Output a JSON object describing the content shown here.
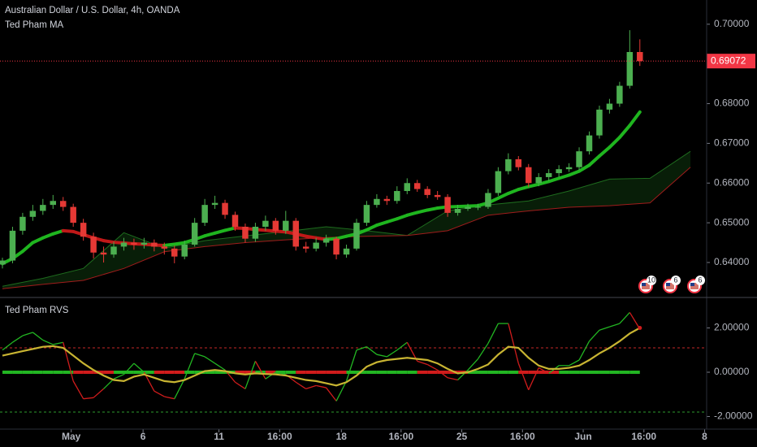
{
  "chart_data": [
    {
      "type": "candlestick",
      "title": "Australian Dollar / U.S. Dollar, 4h, OANDA",
      "subtitle": "Ted Pham MA",
      "ohlc": [
        [
          0.6395,
          0.6412,
          0.6385,
          0.6405
        ],
        [
          0.6405,
          0.649,
          0.6398,
          0.648
        ],
        [
          0.648,
          0.6525,
          0.647,
          0.6515
        ],
        [
          0.6515,
          0.6545,
          0.6505,
          0.653
        ],
        [
          0.653,
          0.656,
          0.652,
          0.6545
        ],
        [
          0.6545,
          0.657,
          0.6535,
          0.6555
        ],
        [
          0.6555,
          0.6565,
          0.653,
          0.654
        ],
        [
          0.654,
          0.6548,
          0.649,
          0.65
        ],
        [
          0.65,
          0.651,
          0.6455,
          0.6465
        ],
        [
          0.6465,
          0.6475,
          0.641,
          0.6425
        ],
        [
          0.6425,
          0.644,
          0.64,
          0.642
        ],
        [
          0.642,
          0.6452,
          0.6412,
          0.644
        ],
        [
          0.644,
          0.6462,
          0.643,
          0.645
        ],
        [
          0.645,
          0.646,
          0.6432,
          0.6445
        ],
        [
          0.6445,
          0.6462,
          0.6435,
          0.645
        ],
        [
          0.645,
          0.6458,
          0.6428,
          0.644
        ],
        [
          0.644,
          0.645,
          0.642,
          0.6435
        ],
        [
          0.6435,
          0.6442,
          0.6398,
          0.6415
        ],
        [
          0.6415,
          0.6455,
          0.6408,
          0.6445
        ],
        [
          0.6445,
          0.6512,
          0.644,
          0.65
        ],
        [
          0.65,
          0.656,
          0.6492,
          0.6545
        ],
        [
          0.6545,
          0.6568,
          0.6535,
          0.655
        ],
        [
          0.655,
          0.6558,
          0.651,
          0.652
        ],
        [
          0.652,
          0.6528,
          0.648,
          0.649
        ],
        [
          0.649,
          0.6498,
          0.645,
          0.646
        ],
        [
          0.646,
          0.65,
          0.6452,
          0.649
        ],
        [
          0.649,
          0.6518,
          0.648,
          0.6505
        ],
        [
          0.6505,
          0.6512,
          0.647,
          0.648
        ],
        [
          0.648,
          0.653,
          0.6472,
          0.6505
        ],
        [
          0.6505,
          0.6512,
          0.643,
          0.644
        ],
        [
          0.644,
          0.6452,
          0.6425,
          0.6435
        ],
        [
          0.6435,
          0.6462,
          0.6428,
          0.645
        ],
        [
          0.645,
          0.647,
          0.644,
          0.646
        ],
        [
          0.646,
          0.6465,
          0.6408,
          0.642
        ],
        [
          0.642,
          0.6445,
          0.6412,
          0.6435
        ],
        [
          0.6435,
          0.651,
          0.643,
          0.65
        ],
        [
          0.65,
          0.6555,
          0.6492,
          0.6545
        ],
        [
          0.6545,
          0.6572,
          0.6538,
          0.656
        ],
        [
          0.656,
          0.6568,
          0.6545,
          0.6555
        ],
        [
          0.6555,
          0.6592,
          0.6548,
          0.658
        ],
        [
          0.658,
          0.6612,
          0.6572,
          0.66
        ],
        [
          0.66,
          0.6608,
          0.6578,
          0.6585
        ],
        [
          0.6585,
          0.6592,
          0.6562,
          0.657
        ],
        [
          0.657,
          0.658,
          0.6558,
          0.6565
        ],
        [
          0.6565,
          0.6572,
          0.6515,
          0.6525
        ],
        [
          0.6525,
          0.6545,
          0.6518,
          0.6535
        ],
        [
          0.6535,
          0.6548,
          0.653,
          0.654
        ],
        [
          0.654,
          0.6548,
          0.6532,
          0.654
        ],
        [
          0.654,
          0.6585,
          0.6535,
          0.6575
        ],
        [
          0.6575,
          0.664,
          0.6568,
          0.663
        ],
        [
          0.663,
          0.6675,
          0.6622,
          0.666
        ],
        [
          0.666,
          0.6668,
          0.6632,
          0.664
        ],
        [
          0.664,
          0.6648,
          0.659,
          0.66
        ],
        [
          0.66,
          0.6625,
          0.6592,
          0.6615
        ],
        [
          0.6615,
          0.6635,
          0.6605,
          0.6625
        ],
        [
          0.6625,
          0.6645,
          0.6615,
          0.6635
        ],
        [
          0.6635,
          0.665,
          0.6628,
          0.664
        ],
        [
          0.664,
          0.669,
          0.6632,
          0.668
        ],
        [
          0.668,
          0.673,
          0.6672,
          0.672
        ],
        [
          0.672,
          0.6795,
          0.6712,
          0.6785
        ],
        [
          0.6785,
          0.6812,
          0.6775,
          0.68
        ],
        [
          0.68,
          0.6855,
          0.6792,
          0.6845
        ],
        [
          0.6845,
          0.6985,
          0.6838,
          0.693
        ],
        [
          0.693,
          0.6962,
          0.6895,
          0.6907
        ]
      ],
      "up_color": "#4caf50",
      "down_color": "#e53935",
      "xlim": [
        -0.24,
        69.6
      ],
      "ylim": [
        0.6314,
        0.7061
      ],
      "yticks": [
        {
          "value": 0.64,
          "label": "0.64000"
        },
        {
          "value": 0.65,
          "label": "0.65000"
        },
        {
          "value": 0.66,
          "label": "0.66000"
        },
        {
          "value": 0.67,
          "label": "0.67000"
        },
        {
          "value": 0.68,
          "label": "0.68000"
        },
        {
          "value": 0.69,
          "label": "0.69000"
        },
        {
          "value": 0.7,
          "label": "0.70000"
        }
      ],
      "last_price": 0.69072,
      "last_price_color": "#f23645",
      "ma": {
        "values": [
          0.6397,
          0.641,
          0.6428,
          0.645,
          0.6462,
          0.6472,
          0.648,
          0.6478,
          0.647,
          0.6462,
          0.6455,
          0.6451,
          0.6449,
          0.6447,
          0.6446,
          0.6444,
          0.6443,
          0.6446,
          0.645,
          0.6458,
          0.6467,
          0.6474,
          0.6481,
          0.6487,
          0.6486,
          0.6483,
          0.6481,
          0.6479,
          0.6477,
          0.6472,
          0.6466,
          0.6462,
          0.6458,
          0.646,
          0.6466,
          0.6472,
          0.6482,
          0.6494,
          0.6502,
          0.651,
          0.6519,
          0.6526,
          0.6532,
          0.6537,
          0.654,
          0.6541,
          0.6542,
          0.6543,
          0.655,
          0.6562,
          0.6574,
          0.6584,
          0.6591,
          0.6597,
          0.6604,
          0.6612,
          0.662,
          0.663,
          0.6645,
          0.6668,
          0.669,
          0.6715,
          0.6745,
          0.6779
        ],
        "up_color": "#1fb51f",
        "down_color": "#c01818"
      },
      "cloud": {
        "x": [
          0,
          4,
          8,
          12,
          16,
          20,
          24,
          28,
          32,
          36,
          40,
          44,
          48,
          52,
          56,
          60,
          64,
          68
        ],
        "a": [
          0.634,
          0.636,
          0.6385,
          0.6475,
          0.6436,
          0.6455,
          0.6467,
          0.6478,
          0.649,
          0.648,
          0.6468,
          0.653,
          0.6545,
          0.6555,
          0.658,
          0.661,
          0.6612,
          0.668
        ],
        "b": [
          0.6334,
          0.6345,
          0.6355,
          0.6385,
          0.6427,
          0.644,
          0.645,
          0.6457,
          0.6463,
          0.6466,
          0.6468,
          0.648,
          0.6519,
          0.653,
          0.6539,
          0.6543,
          0.655,
          0.664
        ],
        "a_color": "#1e6b1e",
        "b_color": "#a01c1c"
      },
      "events": [
        "10",
        "6",
        "6"
      ]
    },
    {
      "type": "oscillator",
      "title": "Ted Pham RVS",
      "fast": {
        "values": [
          1.0,
          1.35,
          1.65,
          1.8,
          1.45,
          1.25,
          1.35,
          -0.4,
          -1.2,
          -1.15,
          -0.75,
          -0.3,
          -0.1,
          0.4,
          0.0,
          -0.85,
          -1.1,
          -1.2,
          -0.3,
          0.85,
          0.7,
          0.4,
          0.1,
          -0.45,
          -0.75,
          0.5,
          -0.3,
          0.0,
          -0.1,
          -0.45,
          -0.75,
          -0.6,
          -0.7,
          -1.3,
          -0.4,
          1.0,
          1.15,
          0.8,
          0.7,
          1.0,
          1.35,
          0.5,
          0.35,
          0.1,
          -0.25,
          -0.35,
          0.1,
          0.6,
          1.3,
          2.2,
          2.2,
          0.4,
          -0.8,
          0.2,
          -0.05,
          0.3,
          0.3,
          0.55,
          1.4,
          1.9,
          2.05,
          2.2,
          2.7,
          1.95
        ],
        "up_color": "#22b522",
        "down_color": "#d01c1c"
      },
      "slow": {
        "values": [
          0.75,
          0.85,
          0.95,
          1.05,
          1.15,
          1.18,
          1.1,
          0.75,
          0.4,
          0.1,
          -0.15,
          -0.35,
          -0.4,
          -0.2,
          -0.1,
          -0.25,
          -0.4,
          -0.45,
          -0.35,
          -0.15,
          0.05,
          0.1,
          0.05,
          -0.05,
          -0.1,
          -0.05,
          -0.08,
          -0.1,
          -0.15,
          -0.25,
          -0.35,
          -0.4,
          -0.5,
          -0.6,
          -0.45,
          -0.15,
          0.25,
          0.45,
          0.55,
          0.6,
          0.65,
          0.6,
          0.55,
          0.4,
          0.15,
          -0.05,
          0.0,
          0.15,
          0.35,
          0.8,
          1.15,
          1.1,
          0.65,
          0.3,
          0.15,
          0.15,
          0.2,
          0.3,
          0.55,
          0.85,
          1.1,
          1.4,
          1.75,
          2.0
        ],
        "color": "#c8b432"
      },
      "levels": [
        {
          "value": 1.1,
          "color": "#c62828"
        },
        {
          "value": -1.8,
          "color": "#2e9d2e"
        }
      ],
      "xlim": [
        -0.24,
        69.6
      ],
      "ylim": [
        -2.57,
        3.34
      ],
      "yticks": [
        {
          "value": -2,
          "label": "-2.00000"
        },
        {
          "value": 0,
          "label": "0.00000"
        },
        {
          "value": 2,
          "label": "2.00000"
        }
      ],
      "xticks": [
        {
          "value": 6.8,
          "label": "May"
        },
        {
          "value": 13.9,
          "label": "6"
        },
        {
          "value": 21.4,
          "label": "11"
        },
        {
          "value": 27.4,
          "label": "16:00"
        },
        {
          "value": 33.5,
          "label": "18"
        },
        {
          "value": 39.4,
          "label": "16:00"
        },
        {
          "value": 45.4,
          "label": "25"
        },
        {
          "value": 51.4,
          "label": "16:00"
        },
        {
          "value": 57.4,
          "label": "Jun"
        },
        {
          "value": 63.4,
          "label": "16:00"
        },
        {
          "value": 69.4,
          "label": "8"
        }
      ]
    }
  ]
}
